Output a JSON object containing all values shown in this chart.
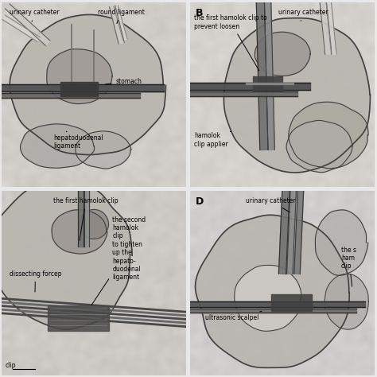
{
  "figure_bg": "#e8e8e8",
  "panels": {
    "A": {
      "bg": "#d0ccc8",
      "label": "",
      "annotations": [
        {
          "text": "urinary catheter",
          "xt": 0.04,
          "yt": 0.935,
          "xa": 0.16,
          "ya": 0.885,
          "ha": "left"
        },
        {
          "text": "round ligament",
          "xt": 0.52,
          "yt": 0.935,
          "xa": 0.62,
          "ya": 0.875,
          "ha": "left"
        },
        {
          "text": "stomach",
          "xt": 0.62,
          "yt": 0.56,
          "xa": 0.55,
          "ya": 0.555,
          "ha": "left"
        },
        {
          "text": "hepatoduodenal\nligament",
          "xt": 0.28,
          "yt": 0.21,
          "xa": 0.35,
          "ya": 0.3,
          "ha": "left"
        }
      ]
    },
    "B": {
      "bg": "#d4d0cc",
      "label": "B",
      "annotations": [
        {
          "text": "the first hamolok clip to\nprevent loosen",
          "xt": 0.02,
          "yt": 0.86,
          "xa": 0.38,
          "ya": 0.62,
          "ha": "left"
        },
        {
          "text": "urinary catheter",
          "xt": 0.48,
          "yt": 0.935,
          "xa": 0.6,
          "ya": 0.9,
          "ha": "left"
        },
        {
          "text": "hamolok\nclip applier",
          "xt": 0.02,
          "yt": 0.22,
          "xa": 0.22,
          "ya": 0.3,
          "ha": "left"
        }
      ]
    },
    "C": {
      "bg": "#ccc8c4",
      "label": "",
      "annotations": [
        {
          "text": "the first hamolok clip",
          "xt": 0.28,
          "yt": 0.935,
          "xa": 0.42,
          "ya": 0.72,
          "ha": "left"
        },
        {
          "text": "dissecting forcep",
          "xt": 0.04,
          "yt": 0.54,
          "xa": 0.18,
          "ya": 0.44,
          "ha": "left"
        },
        {
          "text": "the second\nhamolok\nclip\nto tighten\nup the\nhepato-\nduodenal\nligament",
          "xt": 0.6,
          "yt": 0.52,
          "xa": 0.48,
          "ya": 0.37,
          "ha": "left"
        },
        {
          "text": "clip",
          "xt": 0.02,
          "yt": 0.04,
          "xa": 0.02,
          "ya": 0.04,
          "ha": "left"
        }
      ]
    },
    "D": {
      "bg": "#d0cccc",
      "label": "D",
      "annotations": [
        {
          "text": "urinary catheter",
          "xt": 0.3,
          "yt": 0.935,
          "xa": 0.55,
          "ya": 0.88,
          "ha": "left"
        },
        {
          "text": "the s\nham\nclip",
          "xt": 0.82,
          "yt": 0.58,
          "xa": 0.88,
          "ya": 0.47,
          "ha": "left"
        },
        {
          "text": "ultrasonic scalpel",
          "xt": 0.08,
          "yt": 0.3,
          "xa": 0.4,
          "ya": 0.35,
          "ha": "left"
        }
      ]
    }
  },
  "fontsize": 5.5,
  "label_fontsize": 9,
  "divider_color": "#999999",
  "divider_lw": 1.0
}
